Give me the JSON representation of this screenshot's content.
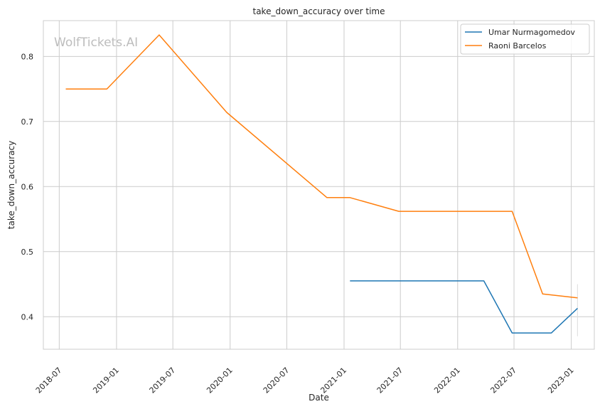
{
  "chart_data": {
    "type": "line",
    "title": "take_down_accuracy over time",
    "xlabel": "Date",
    "ylabel": "take_down_accuracy",
    "watermark": "WolfTickets.AI",
    "x_ticks": [
      "2018-07",
      "2019-01",
      "2019-07",
      "2020-01",
      "2020-07",
      "2021-01",
      "2021-07",
      "2022-01",
      "2022-07",
      "2023-01"
    ],
    "y_ticks": [
      0.4,
      0.5,
      0.6,
      0.7,
      0.8
    ],
    "xlim": [
      "2018-05-11",
      "2023-03-16"
    ],
    "ylim": [
      0.35,
      0.855
    ],
    "grid": true,
    "legend_position": "top-right",
    "series": [
      {
        "name": "Umar Nurmagomedov",
        "color": "#1f77b4",
        "x": [
          "2021-01-20",
          "2022-03-26",
          "2022-06-25",
          "2022-10-29",
          "2023-01-21"
        ],
        "y": [
          0.455,
          0.455,
          0.375,
          0.375,
          0.413
        ]
      },
      {
        "name": "Raoni Barcelos",
        "color": "#ff7f0e",
        "x": [
          "2018-07-22",
          "2018-12-01",
          "2019-05-18",
          "2019-12-21",
          "2020-11-07",
          "2021-01-20",
          "2021-06-26",
          "2022-06-25",
          "2022-10-01",
          "2023-01-21"
        ],
        "y": [
          0.75,
          0.75,
          0.833,
          0.714,
          0.583,
          0.583,
          0.562,
          0.562,
          0.435,
          0.429
        ]
      }
    ]
  }
}
